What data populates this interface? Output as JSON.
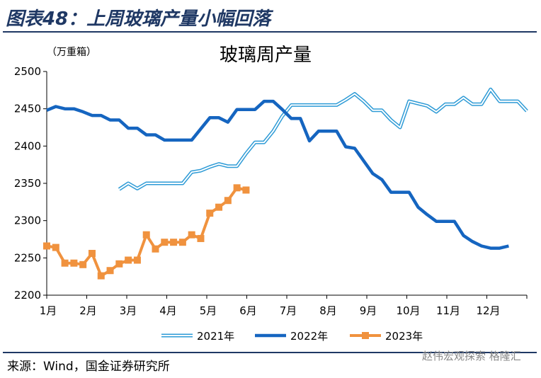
{
  "figure": {
    "title": "图表48：上周玻璃产量小幅回落",
    "source": "来源：Wind，国金证券研究所",
    "watermark": "赵伟宏观探索 格隆汇"
  },
  "chart_data": {
    "type": "line",
    "title": "玻璃周产量",
    "unit_label": "（万重箱）",
    "ylim": [
      2200,
      2500
    ],
    "yticks": [
      "2200",
      "2250",
      "2300",
      "2350",
      "2400",
      "2450",
      "2500"
    ],
    "xticks": [
      "1月",
      "2月",
      "3月",
      "4月",
      "5月",
      "6月",
      "7月",
      "8月",
      "9月",
      "10月",
      "11月",
      "12月"
    ],
    "x_unit": "week",
    "grid": false,
    "legend": "bottom",
    "series": [
      {
        "name": "2021年",
        "color": "#2e9bd6",
        "style": "double",
        "points": [
          [
            9,
            2342
          ],
          [
            10,
            2350
          ],
          [
            11,
            2343
          ],
          [
            12,
            2350
          ],
          [
            13,
            2350
          ],
          [
            14,
            2350
          ],
          [
            15,
            2350
          ],
          [
            16,
            2350
          ],
          [
            17,
            2365
          ],
          [
            18,
            2367
          ],
          [
            19,
            2372
          ],
          [
            20,
            2376
          ],
          [
            21,
            2373
          ],
          [
            22,
            2373
          ],
          [
            23,
            2390
          ],
          [
            24,
            2405
          ],
          [
            25,
            2405
          ],
          [
            26,
            2420
          ],
          [
            27,
            2440
          ],
          [
            28,
            2455
          ],
          [
            29,
            2455
          ],
          [
            30,
            2455
          ],
          [
            31,
            2455
          ],
          [
            32,
            2455
          ],
          [
            33,
            2455
          ],
          [
            34,
            2462
          ],
          [
            35,
            2470
          ],
          [
            36,
            2460
          ],
          [
            37,
            2448
          ],
          [
            38,
            2448
          ],
          [
            39,
            2435
          ],
          [
            40,
            2425
          ],
          [
            41,
            2460
          ],
          [
            42,
            2457
          ],
          [
            43,
            2454
          ],
          [
            44,
            2446
          ],
          [
            45,
            2456
          ],
          [
            46,
            2456
          ],
          [
            47,
            2465
          ],
          [
            48,
            2456
          ],
          [
            49,
            2456
          ],
          [
            50,
            2476
          ],
          [
            51,
            2460
          ],
          [
            52,
            2460
          ],
          [
            53,
            2460
          ],
          [
            54,
            2447
          ]
        ]
      },
      {
        "name": "2022年",
        "color": "#1565c0",
        "style": "thick",
        "points": [
          [
            1,
            2448
          ],
          [
            2,
            2453
          ],
          [
            3,
            2450
          ],
          [
            4,
            2450
          ],
          [
            5,
            2446
          ],
          [
            6,
            2441
          ],
          [
            7,
            2441
          ],
          [
            8,
            2435
          ],
          [
            9,
            2435
          ],
          [
            10,
            2424
          ],
          [
            11,
            2424
          ],
          [
            12,
            2415
          ],
          [
            13,
            2415
          ],
          [
            14,
            2408
          ],
          [
            15,
            2408
          ],
          [
            16,
            2408
          ],
          [
            17,
            2408
          ],
          [
            18,
            2423
          ],
          [
            19,
            2438
          ],
          [
            20,
            2438
          ],
          [
            21,
            2432
          ],
          [
            22,
            2449
          ],
          [
            23,
            2449
          ],
          [
            24,
            2449
          ],
          [
            25,
            2460
          ],
          [
            26,
            2460
          ],
          [
            27,
            2449
          ],
          [
            28,
            2437
          ],
          [
            29,
            2437
          ],
          [
            30,
            2407
          ],
          [
            31,
            2420
          ],
          [
            32,
            2420
          ],
          [
            33,
            2420
          ],
          [
            34,
            2399
          ],
          [
            35,
            2397
          ],
          [
            36,
            2380
          ],
          [
            37,
            2363
          ],
          [
            38,
            2355
          ],
          [
            39,
            2338
          ],
          [
            40,
            2338
          ],
          [
            41,
            2338
          ],
          [
            42,
            2318
          ],
          [
            43,
            2308
          ],
          [
            44,
            2299
          ],
          [
            45,
            2299
          ],
          [
            46,
            2299
          ],
          [
            47,
            2280
          ],
          [
            48,
            2272
          ],
          [
            49,
            2266
          ],
          [
            50,
            2263
          ],
          [
            51,
            2263
          ],
          [
            52,
            2266
          ]
        ]
      },
      {
        "name": "2023年",
        "color": "#f0923e",
        "style": "square-markers",
        "points": [
          [
            1,
            2266
          ],
          [
            2,
            2264
          ],
          [
            3,
            2243
          ],
          [
            4,
            2243
          ],
          [
            5,
            2241
          ],
          [
            6,
            2256
          ],
          [
            7,
            2226
          ],
          [
            8,
            2233
          ],
          [
            9,
            2242
          ],
          [
            10,
            2247
          ],
          [
            11,
            2247
          ],
          [
            12,
            2281
          ],
          [
            13,
            2262
          ],
          [
            14,
            2271
          ],
          [
            15,
            2271
          ],
          [
            16,
            2271
          ],
          [
            17,
            2281
          ],
          [
            18,
            2276
          ],
          [
            19,
            2310
          ],
          [
            20,
            2318
          ],
          [
            21,
            2327
          ],
          [
            22,
            2344
          ],
          [
            23,
            2341
          ]
        ]
      }
    ]
  }
}
